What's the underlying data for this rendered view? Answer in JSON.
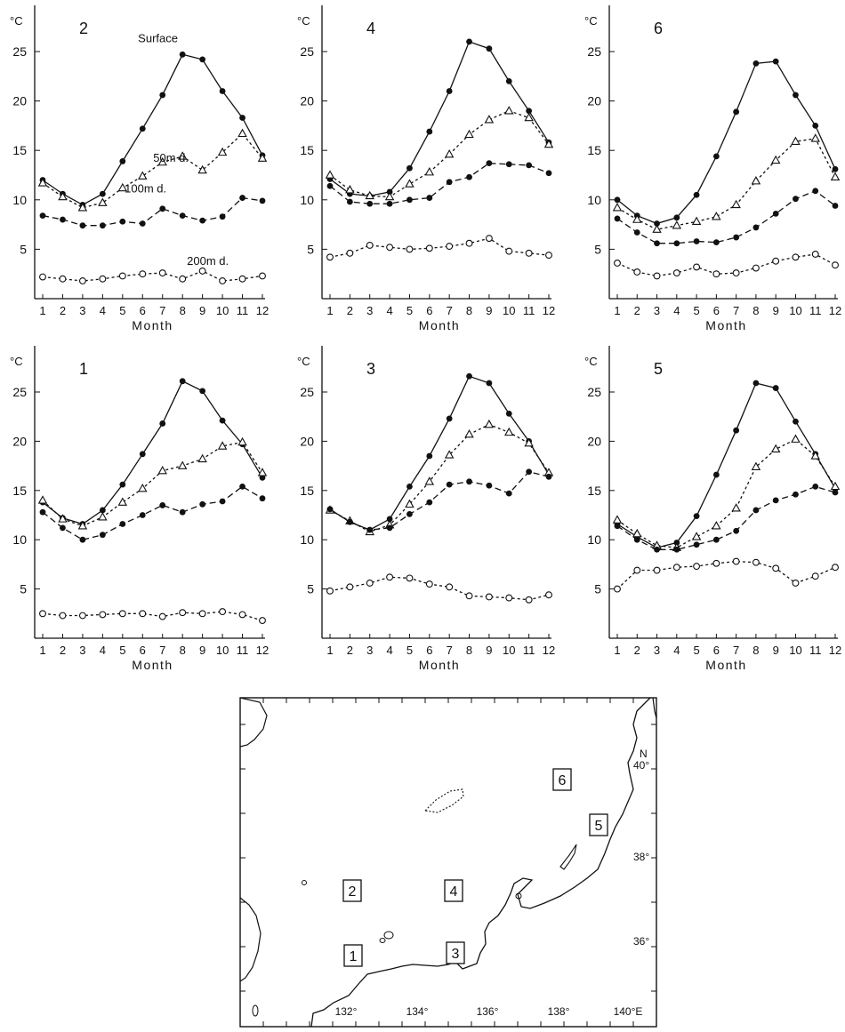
{
  "chart_data": [
    {
      "type": "line",
      "station": "2",
      "unit_label": "°C",
      "xlabel": "Month",
      "categories": [
        "1",
        "2",
        "3",
        "4",
        "5",
        "6",
        "7",
        "8",
        "9",
        "10",
        "11",
        "12"
      ],
      "ylim": [
        0,
        25
      ],
      "yticks": [
        5,
        10,
        15,
        20,
        25
      ],
      "series": [
        {
          "name": "Surface",
          "marker": "filled",
          "dash": "solid",
          "values": [
            12.0,
            10.6,
            9.5,
            10.6,
            13.9,
            17.2,
            20.6,
            24.7,
            24.2,
            21.0,
            18.3,
            14.5
          ]
        },
        {
          "name": "50m d.",
          "marker": "triangle",
          "dash": "dotted",
          "values": [
            11.7,
            10.3,
            9.2,
            9.7,
            11.2,
            12.4,
            13.8,
            14.4,
            13.0,
            14.8,
            16.7,
            14.2
          ]
        },
        {
          "name": "100m d.",
          "marker": "filled",
          "dash": "dashed",
          "values": [
            8.4,
            8.0,
            7.4,
            7.4,
            7.8,
            7.6,
            9.1,
            8.4,
            7.9,
            8.3,
            10.2,
            9.9
          ]
        },
        {
          "name": "200m d.",
          "marker": "open",
          "dash": "dotted",
          "values": [
            2.2,
            2.0,
            1.8,
            2.0,
            2.3,
            2.5,
            2.6,
            2.0,
            2.8,
            1.8,
            2.0,
            2.3
          ]
        }
      ]
    },
    {
      "type": "line",
      "station": "4",
      "unit_label": "°C",
      "xlabel": "Month",
      "categories": [
        "1",
        "2",
        "3",
        "4",
        "5",
        "6",
        "7",
        "8",
        "9",
        "10",
        "11",
        "12"
      ],
      "ylim": [
        0,
        25
      ],
      "yticks": [
        5,
        10,
        15,
        20,
        25
      ],
      "series": [
        {
          "marker": "filled",
          "dash": "solid",
          "values": [
            12.1,
            10.6,
            10.4,
            10.8,
            13.2,
            16.9,
            21.0,
            26.0,
            25.3,
            22.0,
            19.0,
            15.8
          ]
        },
        {
          "marker": "triangle",
          "dash": "dotted",
          "values": [
            12.5,
            11.0,
            10.4,
            10.3,
            11.6,
            12.8,
            14.6,
            16.6,
            18.1,
            19.0,
            18.3,
            15.6
          ]
        },
        {
          "marker": "filled",
          "dash": "dashed",
          "values": [
            11.4,
            9.8,
            9.6,
            9.6,
            10.0,
            10.2,
            11.8,
            12.3,
            13.7,
            13.6,
            13.5,
            12.7
          ]
        },
        {
          "marker": "open",
          "dash": "dotted",
          "values": [
            4.2,
            4.6,
            5.4,
            5.2,
            5.0,
            5.1,
            5.3,
            5.6,
            6.1,
            4.8,
            4.6,
            4.4
          ]
        }
      ]
    },
    {
      "type": "line",
      "station": "6",
      "unit_label": "°C",
      "xlabel": "Month",
      "categories": [
        "1",
        "2",
        "3",
        "4",
        "5",
        "6",
        "7",
        "8",
        "9",
        "10",
        "11",
        "12"
      ],
      "ylim": [
        0,
        25
      ],
      "yticks": [
        5,
        10,
        15,
        20,
        25
      ],
      "series": [
        {
          "marker": "filled",
          "dash": "solid",
          "values": [
            10.0,
            8.4,
            7.6,
            8.2,
            10.5,
            14.4,
            18.9,
            23.8,
            24.0,
            20.6,
            17.5,
            13.1
          ]
        },
        {
          "marker": "triangle",
          "dash": "dotted",
          "values": [
            9.2,
            8.0,
            7.0,
            7.4,
            7.8,
            8.3,
            9.5,
            11.9,
            14.0,
            15.9,
            16.2,
            12.3
          ]
        },
        {
          "marker": "filled",
          "dash": "dashed",
          "values": [
            8.1,
            6.7,
            5.6,
            5.6,
            5.8,
            5.7,
            6.2,
            7.2,
            8.6,
            10.1,
            10.9,
            9.4
          ]
        },
        {
          "marker": "open",
          "dash": "dotted",
          "values": [
            3.6,
            2.7,
            2.3,
            2.6,
            3.2,
            2.5,
            2.6,
            3.1,
            3.8,
            4.2,
            4.5,
            3.4
          ]
        }
      ]
    },
    {
      "type": "line",
      "station": "1",
      "unit_label": "°C",
      "xlabel": "Month",
      "categories": [
        "1",
        "2",
        "3",
        "4",
        "5",
        "6",
        "7",
        "8",
        "9",
        "10",
        "11",
        "12"
      ],
      "ylim": [
        0,
        25
      ],
      "yticks": [
        5,
        10,
        15,
        20,
        25
      ],
      "series": [
        {
          "marker": "filled",
          "dash": "solid",
          "values": [
            13.8,
            12.2,
            11.6,
            13.0,
            15.6,
            18.7,
            21.8,
            26.1,
            25.1,
            22.1,
            19.7,
            16.3
          ]
        },
        {
          "marker": "triangle",
          "dash": "dotted",
          "values": [
            14.0,
            12.1,
            11.4,
            12.3,
            13.8,
            15.2,
            17.0,
            17.5,
            18.2,
            19.5,
            19.9,
            16.8
          ]
        },
        {
          "marker": "filled",
          "dash": "dashed",
          "values": [
            12.8,
            11.2,
            10.0,
            10.5,
            11.6,
            12.5,
            13.5,
            12.8,
            13.6,
            13.9,
            15.4,
            14.2
          ]
        },
        {
          "marker": "open",
          "dash": "dotted",
          "values": [
            2.5,
            2.3,
            2.3,
            2.4,
            2.5,
            2.5,
            2.2,
            2.6,
            2.5,
            2.7,
            2.4,
            1.8
          ]
        }
      ]
    },
    {
      "type": "line",
      "station": "3",
      "unit_label": "°C",
      "xlabel": "Month",
      "categories": [
        "1",
        "2",
        "3",
        "4",
        "5",
        "6",
        "7",
        "8",
        "9",
        "10",
        "11",
        "12"
      ],
      "ylim": [
        0,
        25
      ],
      "yticks": [
        5,
        10,
        15,
        20,
        25
      ],
      "series": [
        {
          "marker": "filled",
          "dash": "solid",
          "values": [
            13.1,
            11.8,
            11.0,
            12.1,
            15.4,
            18.5,
            22.3,
            26.6,
            25.9,
            22.8,
            20.0,
            16.6
          ]
        },
        {
          "marker": "triangle",
          "dash": "dotted",
          "values": [
            13.0,
            11.9,
            10.8,
            11.5,
            13.6,
            15.9,
            18.6,
            20.7,
            21.7,
            20.9,
            19.8,
            16.8
          ]
        },
        {
          "marker": "filled",
          "dash": "dashed",
          "values": [
            13.1,
            11.8,
            11.0,
            11.2,
            12.6,
            13.8,
            15.6,
            15.9,
            15.5,
            14.7,
            16.9,
            16.4
          ]
        },
        {
          "marker": "open",
          "dash": "dotted",
          "values": [
            4.8,
            5.2,
            5.6,
            6.2,
            6.1,
            5.5,
            5.2,
            4.3,
            4.2,
            4.1,
            3.9,
            4.4
          ]
        }
      ]
    },
    {
      "type": "line",
      "station": "5",
      "unit_label": "°C",
      "xlabel": "Month",
      "categories": [
        "1",
        "2",
        "3",
        "4",
        "5",
        "6",
        "7",
        "8",
        "9",
        "10",
        "11",
        "12"
      ],
      "ylim": [
        0,
        25
      ],
      "yticks": [
        5,
        10,
        15,
        20,
        25
      ],
      "series": [
        {
          "marker": "filled",
          "dash": "solid",
          "values": [
            11.6,
            10.3,
            9.2,
            9.7,
            12.4,
            16.6,
            21.1,
            25.9,
            25.4,
            22.0,
            18.7,
            15.2
          ]
        },
        {
          "marker": "triangle",
          "dash": "dotted",
          "values": [
            12.0,
            10.6,
            9.4,
            9.2,
            10.3,
            11.4,
            13.2,
            17.4,
            19.2,
            20.2,
            18.5,
            15.4
          ]
        },
        {
          "marker": "filled",
          "dash": "dashed",
          "values": [
            11.4,
            10.0,
            9.0,
            9.0,
            9.5,
            10.0,
            10.9,
            13.0,
            14.0,
            14.6,
            15.4,
            14.8
          ]
        },
        {
          "marker": "open",
          "dash": "dotted",
          "values": [
            5.0,
            6.9,
            6.9,
            7.2,
            7.3,
            7.6,
            7.8,
            7.7,
            7.1,
            5.6,
            6.3,
            7.2
          ]
        }
      ]
    }
  ],
  "map": {
    "station_labels": [
      "1",
      "2",
      "3",
      "4",
      "5",
      "6"
    ],
    "longitude_labels": [
      "132°",
      "134°",
      "136°",
      "138°",
      "140°E"
    ],
    "latitude_labels": [
      "36°",
      "38°",
      "40°"
    ],
    "north_label": "N"
  }
}
